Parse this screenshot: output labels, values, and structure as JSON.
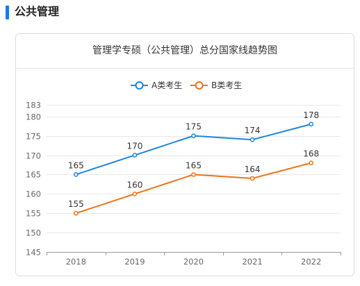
{
  "section": {
    "title": "公共管理"
  },
  "colors": {
    "accent": "#1a7ae6",
    "seriesA": "#1a84e4",
    "seriesB": "#f07016"
  },
  "chart_data": {
    "type": "line",
    "title": "管理学专硕（公共管理）总分国家线趋势图",
    "xlabel": "",
    "ylabel": "",
    "categories": [
      "2018",
      "2019",
      "2020",
      "2021",
      "2022"
    ],
    "ylim": [
      145,
      183
    ],
    "yticks": [
      145,
      150,
      155,
      160,
      165,
      170,
      175,
      180,
      183
    ],
    "grid": true,
    "legend_position": "top-center",
    "series": [
      {
        "name": "A类考生",
        "color": "#1a84e4",
        "values": [
          165,
          170,
          175,
          174,
          178
        ],
        "label_pos": "above"
      },
      {
        "name": "B类考生",
        "color": "#f07016",
        "values": [
          155,
          160,
          165,
          164,
          168
        ],
        "label_pos": "above"
      }
    ]
  }
}
